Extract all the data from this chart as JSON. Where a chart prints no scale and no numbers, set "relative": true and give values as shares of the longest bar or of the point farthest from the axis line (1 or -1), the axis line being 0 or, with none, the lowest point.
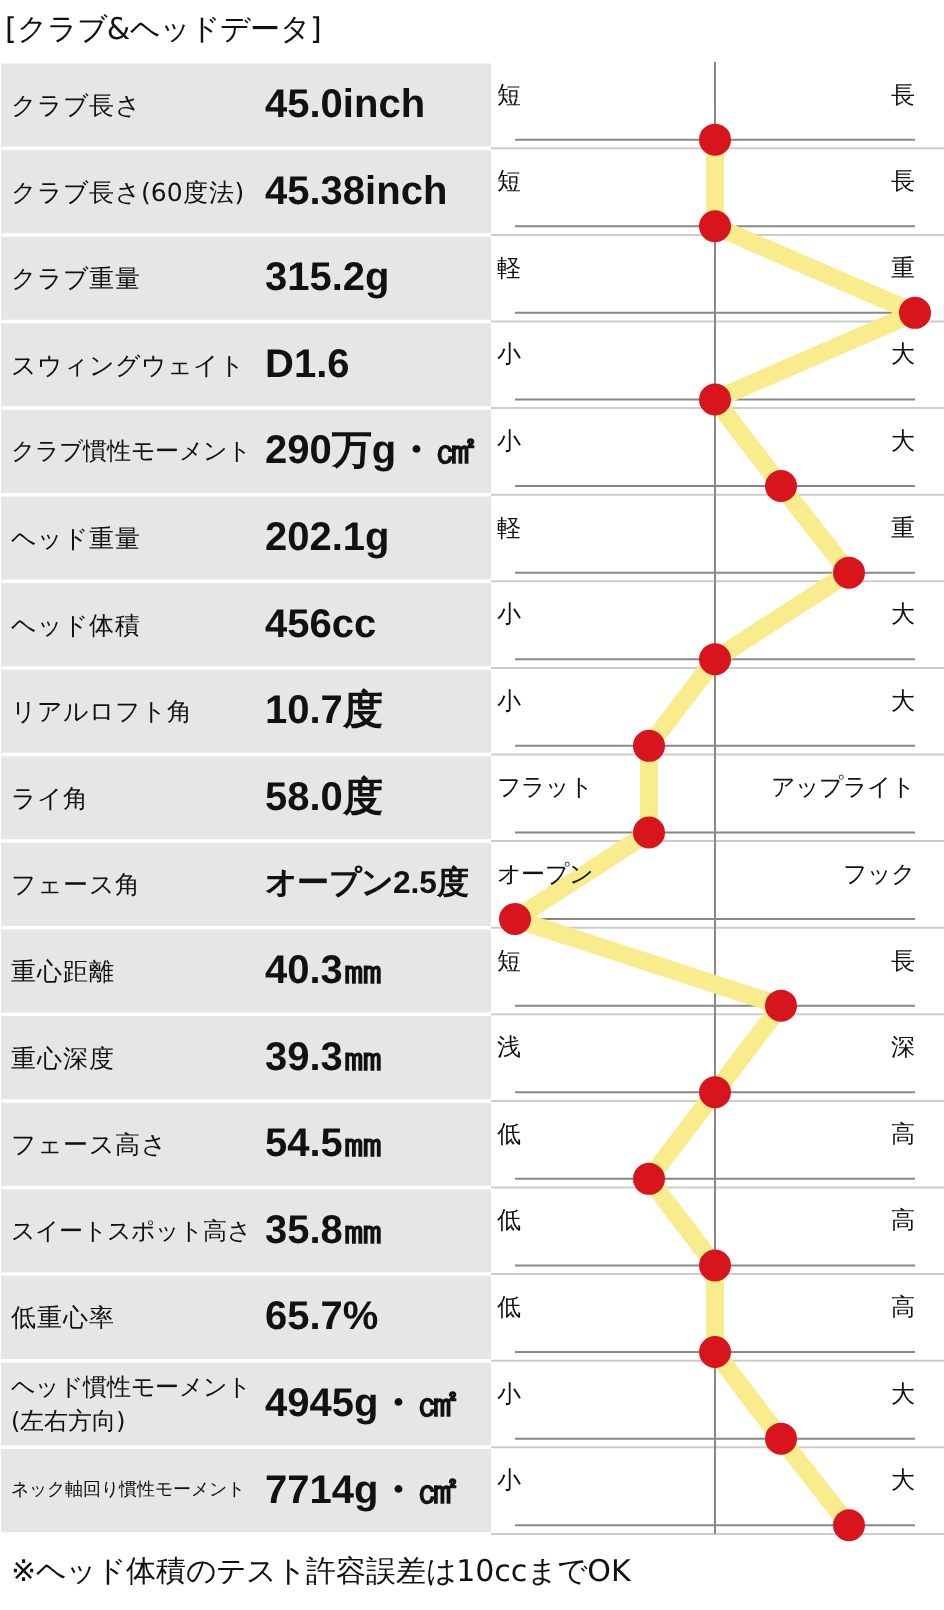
{
  "chart_data": {
    "type": "line",
    "orientation": "horizontal",
    "relative": true,
    "title": "[クラブ&ヘッドデータ]",
    "categories": [
      "クラブ長さ",
      "クラブ長さ(60度法)",
      "クラブ重量",
      "スウィングウェイト",
      "クラブ慣性モーメント",
      "ヘッド重量",
      "ヘッド体積",
      "リアルロフト角",
      "ライ角",
      "フェース角",
      "重心距離",
      "重心深度",
      "フェース高さ",
      "スイートスポット高さ",
      "低重心率",
      "ヘッド慣性モーメント\n(左右方向)",
      "ネック軸回り慣性モーメント"
    ],
    "series": [
      {
        "color": "#f8ec8c",
        "values": [
          0,
          0,
          1,
          0,
          0.33,
          0.67,
          0,
          -0.33,
          -0.33,
          -1,
          0.33,
          0,
          -0.33,
          0,
          0,
          0.33,
          0.67
        ],
        "colors": [
          "#d8141c",
          "#d8141c",
          "#d8141c",
          "#d8141c",
          "#d8141c",
          "#d8141c",
          "#d8141c",
          "#d8141c",
          "#d8141c",
          "#d8141c",
          "#d8141c",
          "#d8141c",
          "#d8141c",
          "#d8141c",
          "#d8141c",
          "#d8141c",
          "#d8141c"
        ]
      }
    ],
    "marker": "circle",
    "line_style": "solid",
    "grid": "y",
    "annotations": [
      "45.0inch",
      "短",
      "長",
      "45.38inch",
      "短",
      "長",
      "315.2g",
      "軽",
      "重",
      "D1.6",
      "小",
      "大",
      "290万g・㎠",
      "小",
      "大",
      "202.1g",
      "軽",
      "重",
      "456cc",
      "小",
      "大",
      "10.7度",
      "小",
      "大",
      "58.0度",
      "フラット",
      "アップライト",
      "オープン2.5度",
      "オープン",
      "フック",
      "40.3㎜",
      "短",
      "長",
      "39.3㎜",
      "浅",
      "深",
      "54.5㎜",
      "低",
      "高",
      "35.8㎜",
      "低",
      "高",
      "65.7%",
      "低",
      "高",
      "4945g・㎠",
      "小",
      "大",
      "7714g・㎠",
      "小",
      "大",
      "※ヘッド体積のテスト許容誤差は10ccまでOK"
    ]
  }
}
